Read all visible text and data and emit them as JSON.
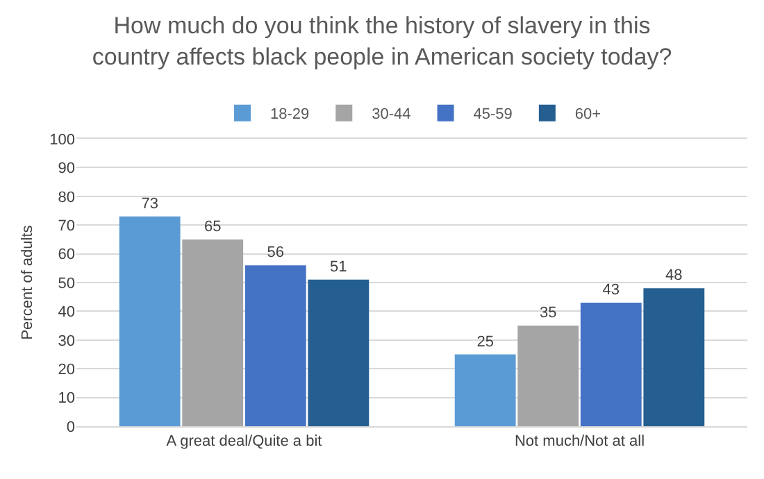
{
  "chart_data": {
    "type": "bar",
    "title": "How much do you think the history of slavery in this\ncountry affects black people in American society today?",
    "ylabel": "Percent of adults",
    "categories": [
      "A great deal/Quite a bit",
      "Not much/Not at all"
    ],
    "series": [
      {
        "name": "18-29",
        "color": "#5b9bd5",
        "values": [
          73,
          25
        ]
      },
      {
        "name": "30-44",
        "color": "#a5a5a5",
        "values": [
          65,
          35
        ]
      },
      {
        "name": "45-59",
        "color": "#4472c4",
        "values": [
          56,
          43
        ]
      },
      {
        "name": "60+",
        "color": "#255e91",
        "values": [
          51,
          48
        ]
      }
    ],
    "ylim": [
      0,
      100
    ],
    "yticks": [
      0,
      10,
      20,
      30,
      40,
      50,
      60,
      70,
      80,
      90,
      100
    ],
    "grid": "y",
    "legend": "top",
    "data_labels": true
  }
}
